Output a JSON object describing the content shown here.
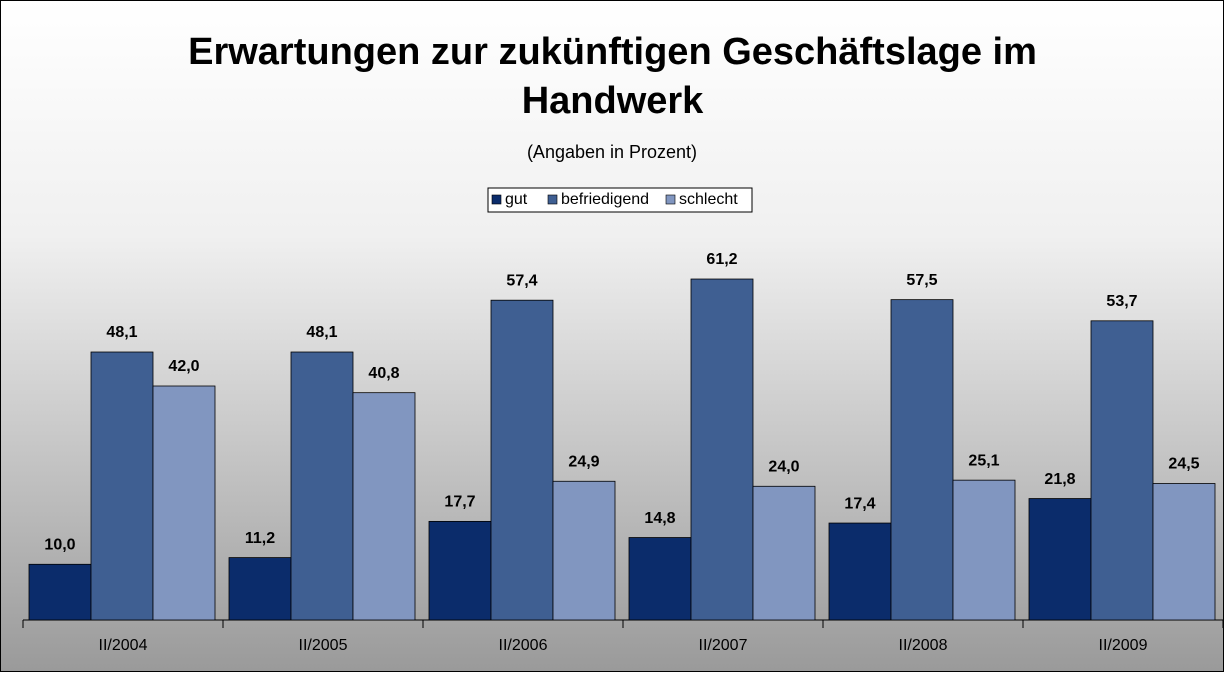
{
  "chart_data": {
    "type": "bar",
    "title": "Erwartungen zur zukünftigen Geschäftslage im Handwerk",
    "subtitle": "(Angaben in Prozent)",
    "categories": [
      "II/2004",
      "II/2005",
      "II/2006",
      "II/2007",
      "II/2008",
      "II/2009"
    ],
    "series": [
      {
        "name": "gut",
        "color": "#0b2c6b",
        "values": [
          10.0,
          11.2,
          17.7,
          14.8,
          17.4,
          21.8
        ],
        "value_labels": [
          "10,0",
          "11,2",
          "17,7",
          "14,8",
          "17,4",
          "21,8"
        ]
      },
      {
        "name": "befriedigend",
        "color": "#3f5f92",
        "values": [
          48.1,
          48.1,
          57.4,
          61.2,
          57.5,
          53.7
        ],
        "value_labels": [
          "48,1",
          "48,1",
          "57,4",
          "61,2",
          "57,5",
          "53,7"
        ]
      },
      {
        "name": "schlecht",
        "color": "#8196c0",
        "values": [
          42.0,
          40.8,
          24.9,
          24.0,
          25.1,
          24.5
        ],
        "value_labels": [
          "42,0",
          "40,8",
          "24,9",
          "24,0",
          "25,1",
          "24,5"
        ]
      }
    ],
    "ylim": [
      0,
      70
    ],
    "legend": "top"
  }
}
